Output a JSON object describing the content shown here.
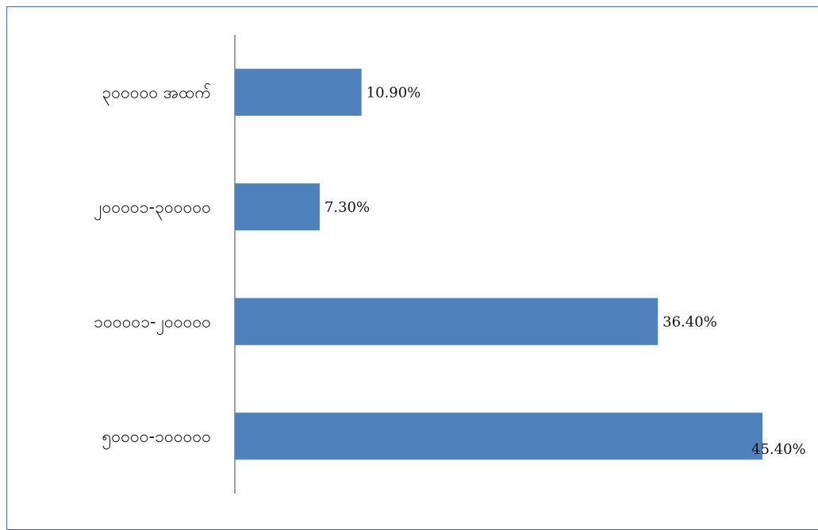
{
  "chart_data": {
    "type": "bar",
    "orientation": "horizontal",
    "categories": [
      "၃၀၀၀၀၀ အထက်",
      "၂၀၀၀၀၁-၃၀၀၀၀၀",
      "၁၀၀၀၀၁-၂၀၀၀၀၀",
      "၅၀၀၀၀-၁၀၀၀၀၀"
    ],
    "values": [
      10.9,
      7.3,
      36.4,
      45.4
    ],
    "data_labels": [
      "10.90%",
      "7.30%",
      "36.40%",
      "45.40%"
    ],
    "unit": "%",
    "xlim": [
      0,
      45.4
    ],
    "grid": false,
    "legend": "none",
    "colors": {
      "bar": "#4f81bd",
      "axis": "#7f7f7f",
      "frame": "#4a6a95"
    }
  }
}
